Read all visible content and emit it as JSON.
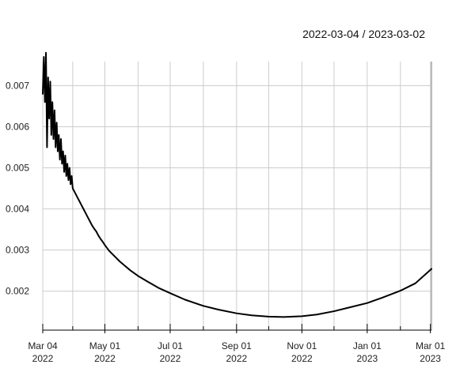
{
  "chart_data": {
    "type": "line",
    "title": "",
    "date_range_label": "2022-03-04 / 2023-03-02",
    "xlabel": "",
    "ylabel": "",
    "x_range": [
      "2022-03-04",
      "2023-03-02"
    ],
    "ylim": [
      0.0013,
      0.0077
    ],
    "grid": true,
    "legend": "none",
    "line_color": "#000000",
    "x_ticks": [
      {
        "date": "2022-03-04",
        "label": "Mar 04\n2022"
      },
      {
        "date": "2022-05-01",
        "label": "May 01\n2022"
      },
      {
        "date": "2022-07-01",
        "label": "Jul 01\n2022"
      },
      {
        "date": "2022-09-01",
        "label": "Sep 01\n2022"
      },
      {
        "date": "2022-11-01",
        "label": "Nov 01\n2022"
      },
      {
        "date": "2023-01-01",
        "label": "Jan 01\n2023"
      },
      {
        "date": "2023-03-01",
        "label": "Mar 01\n2023"
      }
    ],
    "x_minor_ticks": [
      "2022-04-01",
      "2022-06-01",
      "2022-08-01",
      "2022-10-01",
      "2022-12-01",
      "2023-02-01"
    ],
    "y_ticks": [
      0.002,
      0.003,
      0.004,
      0.005,
      0.006,
      0.007
    ],
    "series": [
      {
        "x": [
          "2022-03-04",
          "2022-03-05",
          "2022-03-06",
          "2022-03-07",
          "2022-03-08",
          "2022-03-09",
          "2022-03-10",
          "2022-03-11",
          "2022-03-12",
          "2022-03-13",
          "2022-03-14",
          "2022-03-15",
          "2022-03-16",
          "2022-03-17",
          "2022-03-18",
          "2022-03-19",
          "2022-03-20",
          "2022-03-21",
          "2022-03-22",
          "2022-03-23",
          "2022-03-24",
          "2022-03-25",
          "2022-03-26",
          "2022-03-27",
          "2022-03-28",
          "2022-03-29",
          "2022-03-30",
          "2022-03-31",
          "2022-04-01",
          "2022-04-03",
          "2022-04-05",
          "2022-04-07",
          "2022-04-09",
          "2022-04-11",
          "2022-04-13",
          "2022-04-15",
          "2022-04-17",
          "2022-04-19",
          "2022-04-21",
          "2022-04-23",
          "2022-04-25",
          "2022-04-27",
          "2022-04-29",
          "2022-05-01",
          "2022-05-05",
          "2022-05-10",
          "2022-05-15",
          "2022-05-20",
          "2022-05-25",
          "2022-06-01",
          "2022-06-10",
          "2022-06-20",
          "2022-07-01",
          "2022-07-15",
          "2022-08-01",
          "2022-08-15",
          "2022-09-01",
          "2022-09-15",
          "2022-10-01",
          "2022-10-15",
          "2022-11-01",
          "2022-11-15",
          "2022-12-01",
          "2022-12-15",
          "2023-01-01",
          "2023-01-15",
          "2023-02-01",
          "2023-02-15",
          "2023-03-02"
        ],
        "values": [
          0.0068,
          0.0077,
          0.0066,
          0.0078,
          0.0055,
          0.0072,
          0.0062,
          0.0071,
          0.0058,
          0.0066,
          0.0057,
          0.0064,
          0.0055,
          0.0061,
          0.0054,
          0.0058,
          0.0052,
          0.0057,
          0.0051,
          0.0054,
          0.0049,
          0.0053,
          0.0048,
          0.0051,
          0.0047,
          0.005,
          0.0046,
          0.0048,
          0.0045,
          0.0044,
          0.0043,
          0.0042,
          0.0041,
          0.004,
          0.0039,
          0.0038,
          0.0037,
          0.0036,
          0.00352,
          0.00345,
          0.00335,
          0.00327,
          0.0032,
          0.00312,
          0.00298,
          0.00285,
          0.00272,
          0.00261,
          0.0025,
          0.00237,
          0.00223,
          0.00208,
          0.00195,
          0.00179,
          0.00164,
          0.00155,
          0.00146,
          0.00141,
          0.00138,
          0.00137,
          0.00139,
          0.00143,
          0.00151,
          0.0016,
          0.00171,
          0.00184,
          0.00201,
          0.00219,
          0.00254
        ]
      }
    ]
  }
}
